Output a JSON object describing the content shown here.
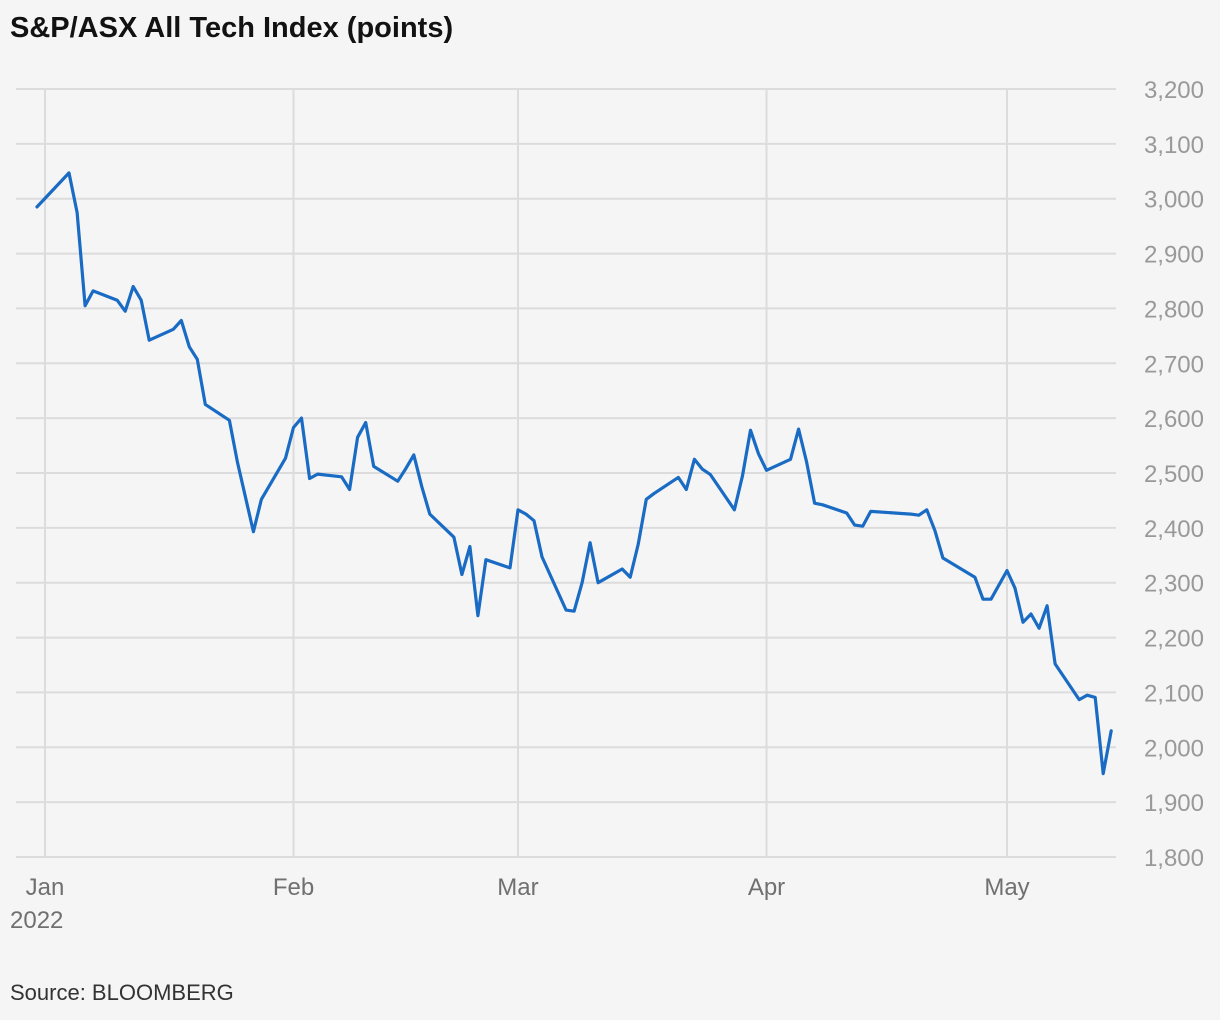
{
  "chart_data": {
    "type": "line",
    "title": "S&P/ASX All Tech Index (points)",
    "source": "Source: BLOOMBERG",
    "xlabel": "",
    "ylabel": "",
    "ylim": [
      1800,
      3200
    ],
    "y_ticks": [
      "3,200",
      "3,100",
      "3,000",
      "2,900",
      "2,800",
      "2,700",
      "2,600",
      "2,500",
      "2,400",
      "2,300",
      "2,200",
      "2,100",
      "2,000",
      "1,900",
      "1,800"
    ],
    "y_tick_values": [
      3200,
      3100,
      3000,
      2900,
      2800,
      2700,
      2600,
      2500,
      2400,
      2300,
      2200,
      2100,
      2000,
      1900,
      1800
    ],
    "x_ticks": [
      {
        "label": "Jan",
        "sub": "2022",
        "date": "2022-01-01"
      },
      {
        "label": "Feb",
        "sub": "",
        "date": "2022-02-01"
      },
      {
        "label": "Mar",
        "sub": "",
        "date": "2022-03-01"
      },
      {
        "label": "Apr",
        "sub": "",
        "date": "2022-04-01"
      },
      {
        "label": "May",
        "sub": "",
        "date": "2022-05-01"
      }
    ],
    "grid": true,
    "line_color": "#1a6bc4",
    "grid_color": "#dcdcdc",
    "series": [
      {
        "values": [
          [
            "2021-12-31",
            2985
          ],
          [
            "2022-01-04",
            3047
          ],
          [
            "2022-01-05",
            2975
          ],
          [
            "2022-01-06",
            2805
          ],
          [
            "2022-01-07",
            2832
          ],
          [
            "2022-01-10",
            2815
          ],
          [
            "2022-01-11",
            2795
          ],
          [
            "2022-01-12",
            2840
          ],
          [
            "2022-01-13",
            2815
          ],
          [
            "2022-01-14",
            2742
          ],
          [
            "2022-01-17",
            2762
          ],
          [
            "2022-01-18",
            2778
          ],
          [
            "2022-01-19",
            2730
          ],
          [
            "2022-01-20",
            2707
          ],
          [
            "2022-01-21",
            2625
          ],
          [
            "2022-01-24",
            2596
          ],
          [
            "2022-01-25",
            2520
          ],
          [
            "2022-01-27",
            2393
          ],
          [
            "2022-01-28",
            2452
          ],
          [
            "2022-01-31",
            2527
          ],
          [
            "2022-02-01",
            2583
          ],
          [
            "2022-02-02",
            2600
          ],
          [
            "2022-02-03",
            2490
          ],
          [
            "2022-02-04",
            2498
          ],
          [
            "2022-02-07",
            2493
          ],
          [
            "2022-02-08",
            2470
          ],
          [
            "2022-02-09",
            2565
          ],
          [
            "2022-02-10",
            2592
          ],
          [
            "2022-02-11",
            2512
          ],
          [
            "2022-02-14",
            2485
          ],
          [
            "2022-02-15",
            2508
          ],
          [
            "2022-02-16",
            2533
          ],
          [
            "2022-02-17",
            2475
          ],
          [
            "2022-02-18",
            2425
          ],
          [
            "2022-02-21",
            2383
          ],
          [
            "2022-02-22",
            2315
          ],
          [
            "2022-02-23",
            2366
          ],
          [
            "2022-02-24",
            2240
          ],
          [
            "2022-02-25",
            2342
          ],
          [
            "2022-02-28",
            2327
          ],
          [
            "2022-03-01",
            2433
          ],
          [
            "2022-03-02",
            2425
          ],
          [
            "2022-03-03",
            2413
          ],
          [
            "2022-03-04",
            2347
          ],
          [
            "2022-03-07",
            2250
          ],
          [
            "2022-03-08",
            2248
          ],
          [
            "2022-03-09",
            2300
          ],
          [
            "2022-03-10",
            2373
          ],
          [
            "2022-03-11",
            2300
          ],
          [
            "2022-03-14",
            2325
          ],
          [
            "2022-03-15",
            2310
          ],
          [
            "2022-03-16",
            2370
          ],
          [
            "2022-03-17",
            2452
          ],
          [
            "2022-03-18",
            2463
          ],
          [
            "2022-03-21",
            2492
          ],
          [
            "2022-03-22",
            2470
          ],
          [
            "2022-03-23",
            2525
          ],
          [
            "2022-03-24",
            2507
          ],
          [
            "2022-03-25",
            2497
          ],
          [
            "2022-03-28",
            2433
          ],
          [
            "2022-03-29",
            2495
          ],
          [
            "2022-03-30",
            2578
          ],
          [
            "2022-03-31",
            2535
          ],
          [
            "2022-04-01",
            2505
          ],
          [
            "2022-04-04",
            2525
          ],
          [
            "2022-04-05",
            2580
          ],
          [
            "2022-04-06",
            2520
          ],
          [
            "2022-04-07",
            2445
          ],
          [
            "2022-04-08",
            2442
          ],
          [
            "2022-04-11",
            2427
          ],
          [
            "2022-04-12",
            2405
          ],
          [
            "2022-04-13",
            2403
          ],
          [
            "2022-04-14",
            2430
          ],
          [
            "2022-04-19",
            2425
          ],
          [
            "2022-04-20",
            2423
          ],
          [
            "2022-04-21",
            2433
          ],
          [
            "2022-04-22",
            2395
          ],
          [
            "2022-04-23",
            2345
          ],
          [
            "2022-04-27",
            2310
          ],
          [
            "2022-04-28",
            2270
          ],
          [
            "2022-04-29",
            2270
          ],
          [
            "2022-05-01",
            2322
          ],
          [
            "2022-05-02",
            2290
          ],
          [
            "2022-05-03",
            2228
          ],
          [
            "2022-05-04",
            2243
          ],
          [
            "2022-05-05",
            2217
          ],
          [
            "2022-05-06",
            2258
          ],
          [
            "2022-05-07",
            2152
          ],
          [
            "2022-05-10",
            2087
          ],
          [
            "2022-05-11",
            2095
          ],
          [
            "2022-05-12",
            2091
          ],
          [
            "2022-05-13",
            1952
          ],
          [
            "2022-05-14",
            2030
          ]
        ]
      }
    ]
  }
}
